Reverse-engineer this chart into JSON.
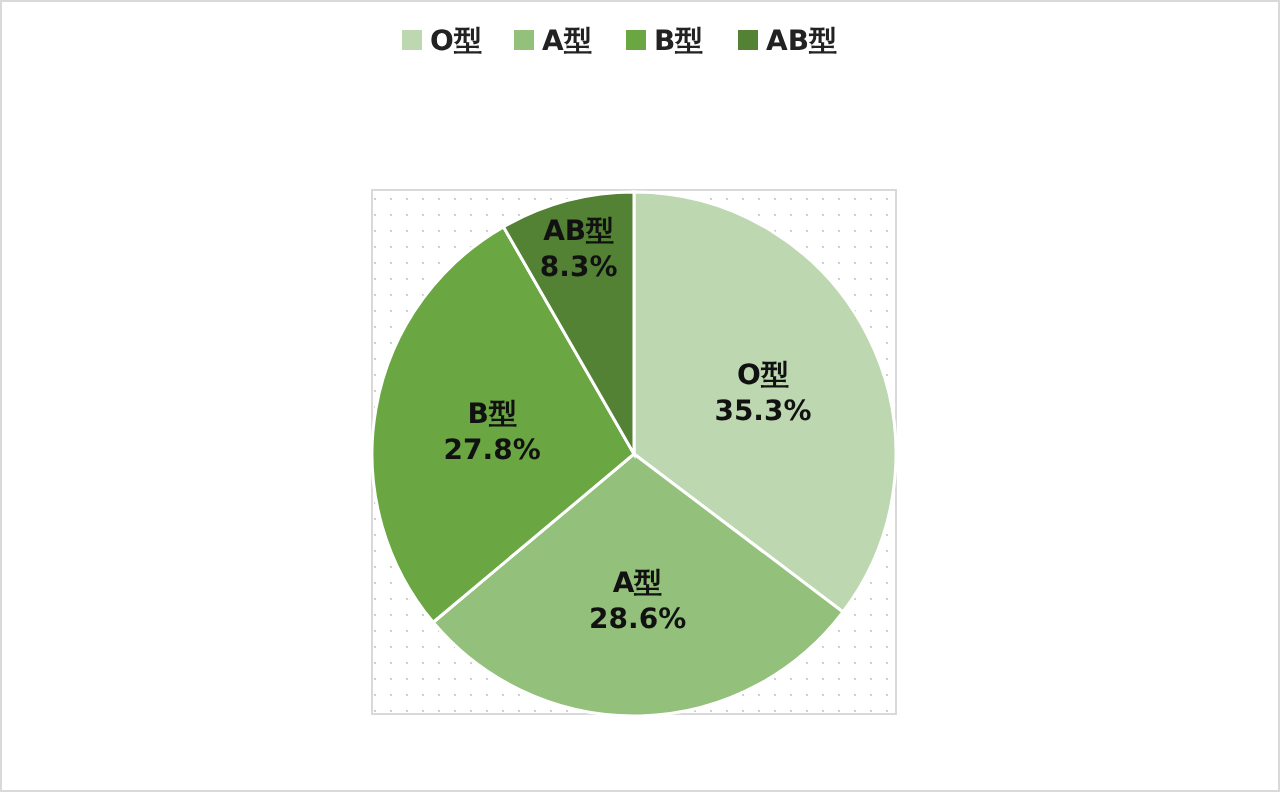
{
  "chart_data": {
    "type": "pie",
    "categories": [
      "O型",
      "A型",
      "B型",
      "AB型"
    ],
    "values": [
      35.3,
      28.6,
      27.8,
      8.3
    ],
    "colors": [
      "#bdd7b0",
      "#93c07a",
      "#6aa642",
      "#548235"
    ],
    "value_labels": [
      "35.3%",
      "28.6%",
      "27.8%",
      "8.3%"
    ],
    "legend": "top"
  }
}
